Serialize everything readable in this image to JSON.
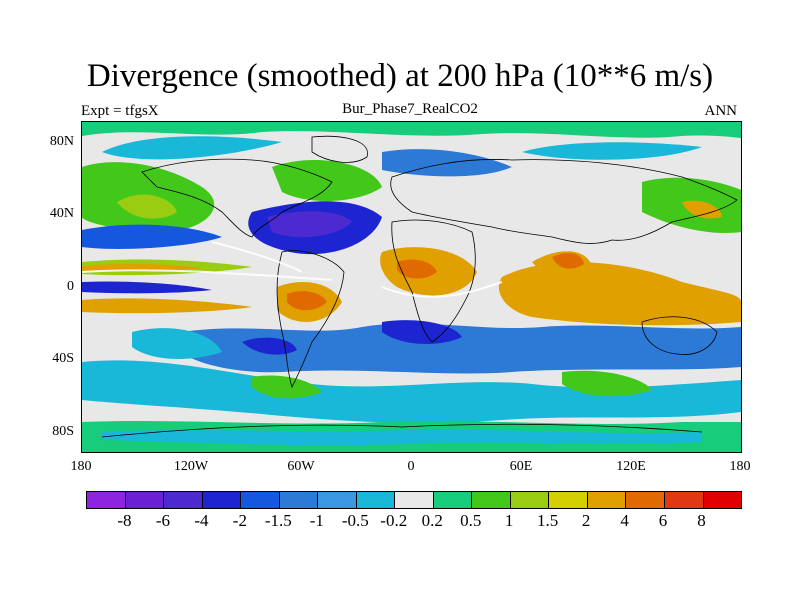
{
  "title": "Divergence (smoothed) at 200 hPa (10**6 m/s)",
  "subtitle_left": "Expt = tfgsX",
  "subtitle_center": "Bur_Phase7_RealCO2",
  "subtitle_right": "ANN",
  "y_ticks": [
    "80N",
    "40N",
    "0",
    "40S",
    "80S"
  ],
  "x_ticks": [
    "180",
    "120W",
    "60W",
    "0",
    "60E",
    "120E",
    "180"
  ],
  "colorbar": {
    "labels": [
      "-8",
      "-6",
      "-4",
      "-2",
      "-1.5",
      "-1",
      "-0.5",
      "-0.2",
      "0.2",
      "0.5",
      "1",
      "1.5",
      "2",
      "4",
      "6",
      "8"
    ],
    "colors": [
      "#8c24e0",
      "#6a21d6",
      "#4d2ad0",
      "#1c25d0",
      "#1657e0",
      "#2c7ad6",
      "#3a98e0",
      "#1ab8d8",
      "#e8e8e8",
      "#17cc7a",
      "#41c81a",
      "#9acd12",
      "#d4d000",
      "#e0a000",
      "#e06a00",
      "#e03810",
      "#e00000"
    ]
  }
}
